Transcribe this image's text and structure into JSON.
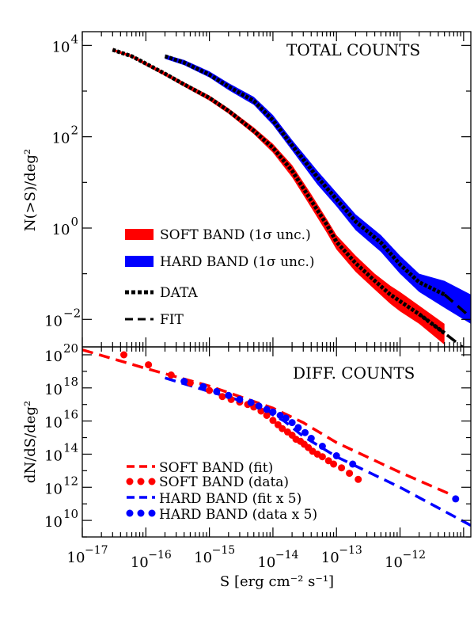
{
  "figure": {
    "x_axis_label": "S [erg cm⁻² s⁻¹]",
    "colors": {
      "soft": "#ff0000",
      "hard": "#0000ff",
      "data": "#000000",
      "frame": "#000000"
    }
  },
  "chart_data": [
    {
      "type": "area",
      "panel": "top",
      "title": "TOTAL COUNTS",
      "ylabel": "N(>S)/deg²",
      "xlabel": "",
      "xscale": "log",
      "yscale": "log",
      "xlim": [
        1e-17,
        1.3e-11
      ],
      "ylim": [
        0.0025,
        20000
      ],
      "x_ticks": [],
      "y_ticks": [
        {
          "value": 0.01,
          "base": "10",
          "exp": "−2"
        },
        {
          "value": 1,
          "base": "10",
          "exp": "0"
        },
        {
          "value": 100,
          "base": "10",
          "exp": "2"
        },
        {
          "value": 10000,
          "base": "10",
          "exp": "4"
        }
      ],
      "legend_position": "bottom-left",
      "legend": [
        {
          "label": "SOFT BAND (1σ unc.)",
          "style": "band",
          "color": "#ff0000"
        },
        {
          "label": "HARD BAND (1σ unc.)",
          "style": "band",
          "color": "#0000ff"
        },
        {
          "label": "DATA",
          "style": "dotted",
          "color": "#000000"
        },
        {
          "label": "FIT",
          "style": "dashed",
          "color": "#000000"
        }
      ],
      "series": [
        {
          "name": "SOFT BAND (1σ unc.)",
          "kind": "band",
          "color": "#ff0000",
          "x": [
            3e-17,
            6e-17,
            1e-16,
            2e-16,
            4e-16,
            1e-15,
            2e-15,
            5e-15,
            1e-14,
            2e-14,
            4e-14,
            7e-14,
            1e-13,
            2e-13,
            4e-13,
            7e-13,
            1e-12,
            2e-12,
            5e-12
          ],
          "upper": [
            8500,
            6200,
            4300,
            2600,
            1550,
            800,
            420,
            160,
            70,
            24,
            5.5,
            1.6,
            0.7,
            0.25,
            0.1,
            0.055,
            0.04,
            0.02,
            0.008
          ],
          "lower": [
            7500,
            5400,
            3600,
            2150,
            1250,
            620,
            320,
            115,
            45,
            13,
            2.8,
            0.8,
            0.34,
            0.11,
            0.045,
            0.022,
            0.015,
            0.008,
            0.0028
          ]
        },
        {
          "name": "HARD BAND (1σ unc.)",
          "kind": "band",
          "color": "#0000ff",
          "x": [
            2e-16,
            4e-16,
            1e-15,
            2e-15,
            5e-15,
            1e-14,
            2e-14,
            5e-14,
            1e-13,
            2e-13,
            5e-13,
            1e-12,
            2e-12,
            5e-12,
            1.3e-11
          ],
          "upper": [
            6300,
            4800,
            2700,
            1500,
            750,
            300,
            85,
            18,
            6,
            2,
            0.7,
            0.25,
            0.1,
            0.07,
            0.035
          ],
          "lower": [
            5100,
            3700,
            2000,
            1050,
            500,
            180,
            50,
            9,
            3,
            0.9,
            0.3,
            0.1,
            0.04,
            0.018,
            0.008
          ]
        },
        {
          "name": "DATA (soft)",
          "kind": "dotted",
          "color": "#000000",
          "x": [
            3e-17,
            6e-17,
            1e-16,
            2e-16,
            4e-16,
            1e-15,
            2e-15,
            5e-15,
            1e-14,
            2e-14,
            4e-14,
            7e-14,
            1e-13,
            2e-13,
            4e-13,
            7e-13,
            1e-12,
            2e-12,
            5e-12
          ],
          "y": [
            8000,
            5800,
            4000,
            2400,
            1400,
            710,
            370,
            135,
            57,
            18,
            4,
            1.2,
            0.5,
            0.17,
            0.07,
            0.035,
            0.025,
            0.013,
            0.005
          ]
        },
        {
          "name": "DATA (hard)",
          "kind": "dotted",
          "color": "#000000",
          "x": [
            2e-16,
            4e-16,
            1e-15,
            2e-15,
            5e-15,
            1e-14,
            2e-14,
            5e-14,
            1e-13,
            2e-13,
            5e-13,
            1e-12,
            2e-12,
            5e-12
          ],
          "y": [
            5800,
            4200,
            2300,
            1250,
            610,
            230,
            65,
            13,
            4.3,
            1.4,
            0.48,
            0.16,
            0.065,
            0.035
          ]
        },
        {
          "name": "FIT (soft)",
          "kind": "dashed",
          "color": "#000000",
          "x": [
            2e-12,
            5e-12,
            1.3e-11
          ],
          "y": [
            0.013,
            0.005,
            0.0018
          ]
        },
        {
          "name": "FIT (hard)",
          "kind": "dashed",
          "color": "#000000",
          "x": [
            5e-12,
            1.3e-11
          ],
          "y": [
            0.035,
            0.011
          ]
        }
      ]
    },
    {
      "type": "scatter",
      "panel": "bottom",
      "title": "DIFF. COUNTS",
      "ylabel": "dN/dS/deg²",
      "xlabel": "S [erg cm⁻² s⁻¹]",
      "xscale": "log",
      "yscale": "log",
      "xlim": [
        1e-17,
        1.3e-11
      ],
      "ylim": [
        1000000000.0,
        3e+20
      ],
      "x_ticks": [
        {
          "value": 1e-17,
          "base": "10",
          "exp": "−17"
        },
        {
          "value": 1e-16,
          "base": "10",
          "exp": "−16"
        },
        {
          "value": 1e-15,
          "base": "10",
          "exp": "−15"
        },
        {
          "value": 1e-14,
          "base": "10",
          "exp": "−14"
        },
        {
          "value": 1e-13,
          "base": "10",
          "exp": "−13"
        },
        {
          "value": 1e-12,
          "base": "10",
          "exp": "−12"
        }
      ],
      "y_ticks": [
        {
          "value": 10000000000.0,
          "base": "10",
          "exp": "10"
        },
        {
          "value": 1000000000000.0,
          "base": "10",
          "exp": "12"
        },
        {
          "value": 100000000000000.0,
          "base": "10",
          "exp": "14"
        },
        {
          "value": 1e+16,
          "base": "10",
          "exp": "16"
        },
        {
          "value": 1e+18,
          "base": "10",
          "exp": "18"
        },
        {
          "value": 1e+20,
          "base": "10",
          "exp": "20"
        }
      ],
      "legend_position": "bottom-left",
      "legend": [
        {
          "label": "SOFT BAND (fit)",
          "style": "dashed",
          "color": "#ff0000"
        },
        {
          "label": "SOFT BAND (data)",
          "style": "dots",
          "color": "#ff0000"
        },
        {
          "label": "HARD BAND (fit x 5)",
          "style": "dashed",
          "color": "#0000ff"
        },
        {
          "label": "HARD BAND (data x 5)",
          "style": "dots",
          "color": "#0000ff"
        }
      ],
      "series": [
        {
          "name": "SOFT BAND (fit)",
          "kind": "dashed",
          "color": "#ff0000",
          "x": [
            1e-17,
            1e-16,
            1e-15,
            1e-14,
            3e-14,
            1e-13,
            1e-12,
            6e-12
          ],
          "y": [
            2e+20,
            1.5e+19,
            1.3e+18,
            6e+16,
            8000000000000000.0,
            500000000000000.0,
            8000000000000.0,
            400000000000.0
          ]
        },
        {
          "name": "SOFT BAND (data)",
          "kind": "dots",
          "color": "#ff0000",
          "x": [
            4.5e-17,
            1.1e-16,
            2.5e-16,
            5e-16,
            1e-15,
            1.6e-15,
            2.2e-15,
            3e-15,
            4e-15,
            5e-15,
            6.5e-15,
            8e-15,
            1e-14,
            1.2e-14,
            1.4e-14,
            1.7e-14,
            2e-14,
            2.3e-14,
            2.7e-14,
            3.1e-14,
            3.6e-14,
            4.2e-14,
            5e-14,
            6e-14,
            7.5e-14,
            9e-14,
            1.2e-13,
            1.6e-13,
            2.2e-13
          ],
          "y": [
            1e+20,
            2.5e+19,
            6e+18,
            2e+18,
            7e+17,
            3e+17,
            2e+17,
            1.4e+17,
            1e+17,
            7e+16,
            4e+16,
            2.2e+16,
            1.1e+16,
            6000000000000000.0,
            3500000000000000.0,
            2200000000000000.0,
            1400000000000000.0,
            800000000000000.0,
            600000000000000.0,
            400000000000000.0,
            250000000000000.0,
            150000000000000.0,
            100000000000000.0,
            70000000000000.0,
            40000000000000.0,
            25000000000000.0,
            15000000000000.0,
            7000000000000.0,
            3000000000000.0
          ]
        },
        {
          "name": "HARD BAND (fit x 5)",
          "kind": "dashed",
          "color": "#0000ff",
          "x": [
            2e-16,
            1e-15,
            5e-15,
            1.5e-14,
            3e-14,
            1e-13,
            1e-12,
            1.3e-11
          ],
          "y": [
            4e+18,
            6e+17,
            1e+17,
            1e+16,
            1200000000000000.0,
            70000000000000.0,
            1000000000000.0,
            5000000000.0
          ]
        },
        {
          "name": "HARD BAND (data x 5)",
          "kind": "dots",
          "color": "#0000ff",
          "x": [
            4e-16,
            8e-16,
            1.3e-15,
            2e-15,
            3e-15,
            4.5e-15,
            6e-15,
            8e-15,
            1e-14,
            1.3e-14,
            1.6e-14,
            2e-14,
            2.5e-14,
            3.2e-14,
            4e-14,
            6e-14,
            1e-13,
            1.8e-13,
            7.5e-12
          ],
          "y": [
            2.5e+18,
            1.2e+18,
            6e+17,
            3.5e+17,
            2e+17,
            1.3e+17,
            8e+16,
            5e+16,
            3.5e+16,
            2.2e+16,
            1.5e+16,
            8000000000000000.0,
            4000000000000000.0,
            2000000000000000.0,
            900000000000000.0,
            300000000000000.0,
            80000000000000.0,
            25000000000000.0,
            200000000000.0
          ]
        }
      ]
    }
  ]
}
